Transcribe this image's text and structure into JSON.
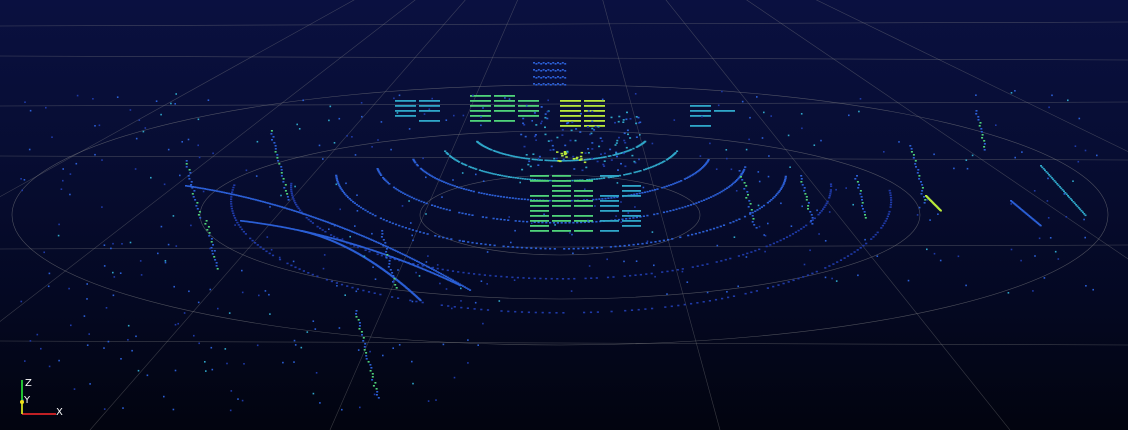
{
  "viewer": {
    "background_top": "#0a1040",
    "background_bottom": "#02040f",
    "grid_color": "#8a8a8a",
    "point_palette": [
      "#1f3aa8",
      "#2b5fd6",
      "#2fa6c8",
      "#4fd37a",
      "#b8e83a"
    ]
  },
  "axes": {
    "x_label": "X",
    "y_label": "Y",
    "z_label": "Z",
    "x_color": "#ff2a2a",
    "y_color": "#f2e21a",
    "z_color": "#2aff3a"
  }
}
